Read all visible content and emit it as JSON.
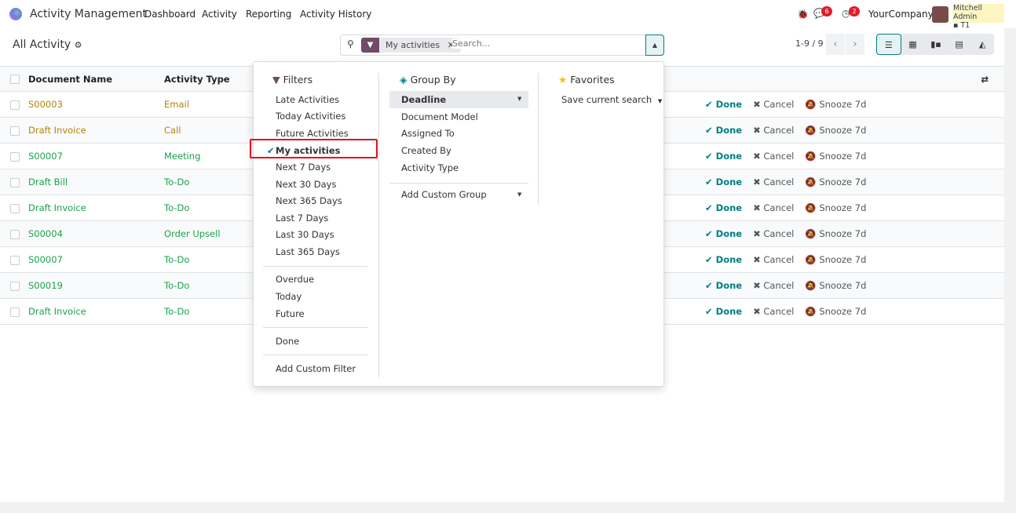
{
  "app": {
    "name": "Activity Management",
    "menu": [
      "Dashboard",
      "Activity",
      "Reporting",
      "Activity History"
    ],
    "messages_count": "6",
    "activities_count": "2",
    "company": "YourCompany",
    "user": "Mitchell Admin",
    "db": "T1"
  },
  "control": {
    "title": "All Activity",
    "facet": "My activities",
    "search_placeholder": "Search...",
    "pager": "1-9 / 9"
  },
  "table": {
    "headers": [
      "Document Name",
      "Activity Type"
    ],
    "rows": [
      {
        "doc": "S00003",
        "type": "Email",
        "color": "#b5820c"
      },
      {
        "doc": "Draft Invoice",
        "type": "Call",
        "color": "#b5820c"
      },
      {
        "doc": "S00007",
        "type": "Meeting",
        "color": "#1aa34a"
      },
      {
        "doc": "Draft Bill",
        "type": "To-Do",
        "color": "#1aa34a"
      },
      {
        "doc": "Draft Invoice",
        "type": "To-Do",
        "color": "#1aa34a"
      },
      {
        "doc": "S00004",
        "type": "Order Upsell",
        "color": "#1aa34a"
      },
      {
        "doc": "S00007",
        "type": "To-Do",
        "color": "#1aa34a"
      },
      {
        "doc": "S00019",
        "type": "To-Do",
        "color": "#1aa34a"
      },
      {
        "doc": "Draft Invoice",
        "type": "To-Do",
        "color": "#1aa34a"
      }
    ],
    "actions": {
      "done": "Done",
      "cancel": "Cancel",
      "snooze": "Snooze 7d"
    }
  },
  "filters": {
    "title": "Filters",
    "items": [
      "Late Activities",
      "Today Activities",
      "Future Activities",
      "My activities",
      "Next 7 Days",
      "Next 30 Days",
      "Next 365 Days",
      "Last 7 Days",
      "Last 30 Days",
      "Last 365 Days"
    ],
    "selected": "My activities",
    "items2": [
      "Overdue",
      "Today",
      "Future"
    ],
    "done": "Done",
    "add_custom": "Add Custom Filter"
  },
  "groupby": {
    "title": "Group By",
    "items": [
      "Deadline",
      "Document Model",
      "Assigned To",
      "Created By",
      "Activity Type"
    ],
    "add_custom": "Add Custom Group"
  },
  "favorites": {
    "title": "Favorites",
    "save": "Save current search"
  }
}
